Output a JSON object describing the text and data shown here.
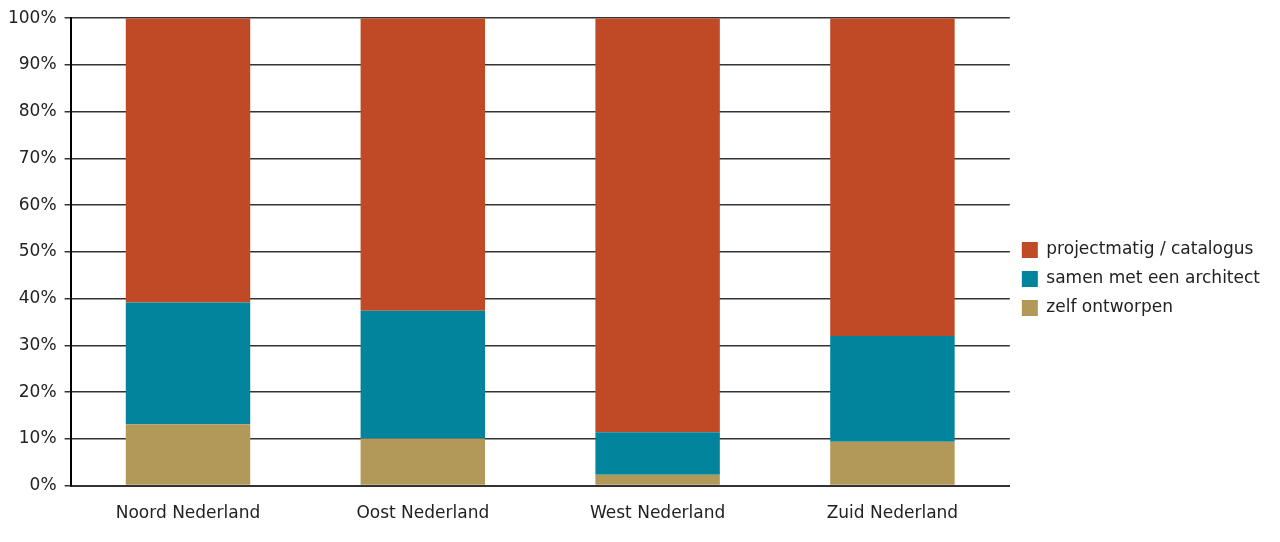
{
  "chart_data": {
    "type": "bar",
    "stacked": true,
    "categories": [
      "Noord Nederland",
      "Oost Nederland",
      "West Nederland",
      "Zuid Nederland"
    ],
    "series": [
      {
        "name": "zelf ontworpen",
        "color": "#b2995a",
        "values": [
          13.1,
          10.1,
          2.3,
          9.4
        ]
      },
      {
        "name": "samen met een architect",
        "color": "#02849c",
        "values": [
          26.1,
          27.3,
          9.1,
          22.6
        ]
      },
      {
        "name": "projectmatig / catalogus",
        "color": "#c04a26",
        "values": [
          60.8,
          62.6,
          88.6,
          68.0
        ]
      }
    ],
    "ylim": [
      0,
      100
    ],
    "yticks": [
      {
        "value": 0,
        "label": "0%"
      },
      {
        "value": 10,
        "label": "10%"
      },
      {
        "value": 20,
        "label": "20%"
      },
      {
        "value": 30,
        "label": "30%"
      },
      {
        "value": 40,
        "label": "40%"
      },
      {
        "value": 50,
        "label": "50%"
      },
      {
        "value": 60,
        "label": "60%"
      },
      {
        "value": 70,
        "label": "70%"
      },
      {
        "value": 80,
        "label": "80%"
      },
      {
        "value": 90,
        "label": "90%"
      },
      {
        "value": 100,
        "label": "100%"
      }
    ],
    "grid": "y",
    "legend": "right"
  }
}
